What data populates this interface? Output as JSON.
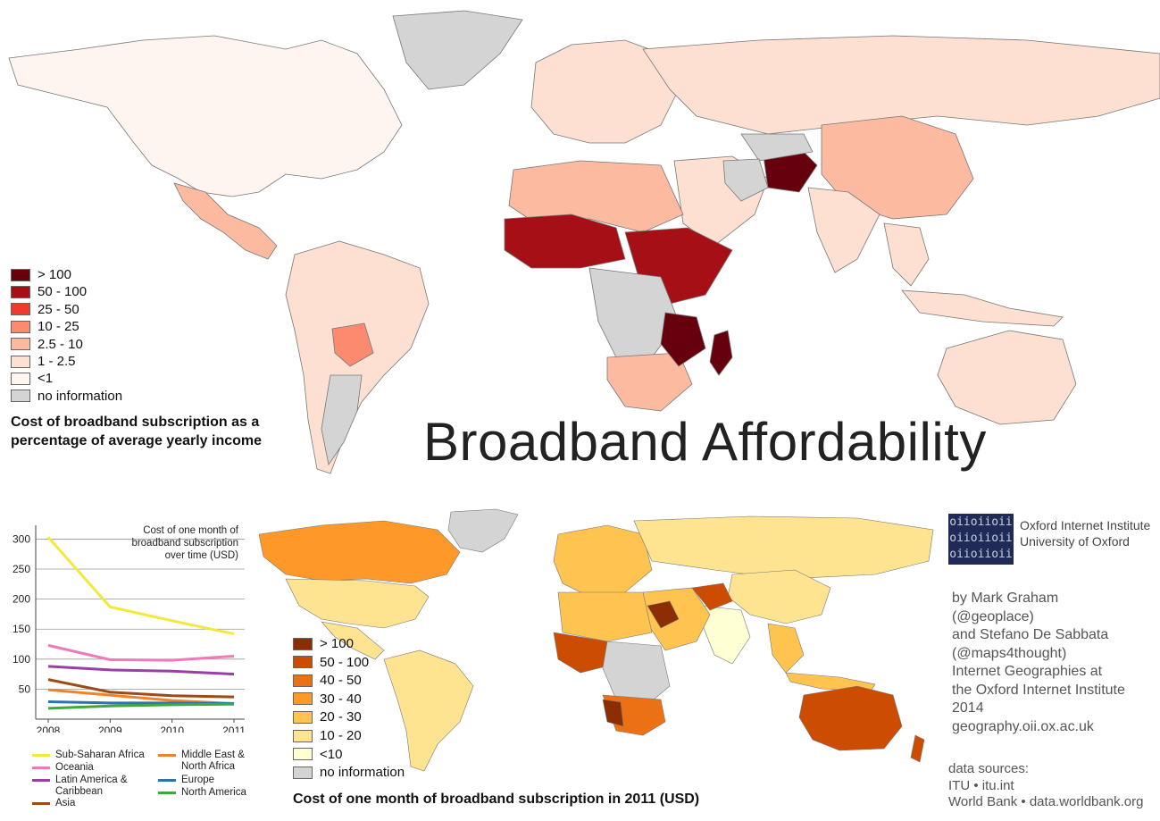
{
  "title": "Broadband Affordability",
  "top_map": {
    "caption": "Cost of broadband subscription as a percentage of average yearly income",
    "legend": [
      {
        "label": "> 100",
        "color": "#67000d"
      },
      {
        "label": "50 - 100",
        "color": "#a50f15"
      },
      {
        "label": "25 - 50",
        "color": "#ef3b2c"
      },
      {
        "label": "10 - 25",
        "color": "#fb8a6e"
      },
      {
        "label": "2.5 - 10",
        "color": "#fcbba1"
      },
      {
        "label": "1 - 2.5",
        "color": "#fee0d2"
      },
      {
        "label": "<1",
        "color": "#fff5f0"
      },
      {
        "label": "no information",
        "color": "#d4d4d4"
      }
    ]
  },
  "bottom_map": {
    "caption": "Cost of one month of broadband subscription in 2011 (USD)",
    "legend": [
      {
        "label": "> 100",
        "color": "#8c2d04"
      },
      {
        "label": "50 - 100",
        "color": "#cc4c02"
      },
      {
        "label": "40 - 50",
        "color": "#ec7014"
      },
      {
        "label": "30 - 40",
        "color": "#fe9929"
      },
      {
        "label": "20 - 30",
        "color": "#fec44f"
      },
      {
        "label": "10 - 20",
        "color": "#fee391"
      },
      {
        "label": "<10",
        "color": "#ffffd4"
      },
      {
        "label": "no information",
        "color": "#d4d4d4"
      }
    ]
  },
  "line_chart": {
    "title": "Cost of one month of broadband subscription over time (USD)",
    "chart_data": {
      "type": "line",
      "title": "Cost of one month of broadband subscription over time (USD)",
      "x": [
        2008,
        2009,
        2010,
        2011
      ],
      "ylim": [
        0,
        320
      ],
      "yticks": [
        50,
        100,
        150,
        200,
        250,
        300
      ],
      "series": [
        {
          "name": "Sub-Saharan Africa",
          "color": "#f2e93a",
          "values": [
            303,
            187,
            164,
            142
          ]
        },
        {
          "name": "Oceania",
          "color": "#f07ab8",
          "values": [
            123,
            99,
            98,
            105
          ]
        },
        {
          "name": "Latin America & Caribbean",
          "color": "#9b3fa6",
          "values": [
            88,
            82,
            80,
            75
          ]
        },
        {
          "name": "Asia",
          "color": "#9c4b17",
          "values": [
            66,
            45,
            39,
            37
          ]
        },
        {
          "name": "Middle East & North Africa",
          "color": "#f0832a",
          "values": [
            49,
            40,
            31,
            26
          ]
        },
        {
          "name": "Europe",
          "color": "#2c73b3",
          "values": [
            29,
            27,
            27,
            26
          ]
        },
        {
          "name": "North America",
          "color": "#3aaa3a",
          "values": [
            18,
            22,
            24,
            25
          ]
        }
      ]
    },
    "legend_order": [
      {
        "name": "Sub-Saharan Africa",
        "color": "#f2e93a"
      },
      {
        "name": "Oceania",
        "color": "#f07ab8"
      },
      {
        "name": "Latin America & Caribbean",
        "color": "#9b3fa6"
      },
      {
        "name": "Asia",
        "color": "#9c4b17"
      },
      {
        "name": "Middle East & North Africa",
        "color": "#f0832a"
      },
      {
        "name": "Europe",
        "color": "#2c73b3"
      },
      {
        "name": "North America",
        "color": "#3aaa3a"
      }
    ]
  },
  "logo": {
    "text": "oiioiioii",
    "institute": "Oxford Internet Institute",
    "university": "University of Oxford"
  },
  "credits": {
    "lines": [
      "by Mark Graham",
      "(@geoplace)",
      "and Stefano De Sabbata",
      "(@maps4thought)",
      "Internet Geographies at",
      "the Oxford Internet Institute",
      "2014",
      "geography.oii.ox.ac.uk"
    ],
    "sources_title": "data sources:",
    "sources": [
      "ITU • itu.int",
      "World Bank • data.worldbank.org"
    ]
  }
}
